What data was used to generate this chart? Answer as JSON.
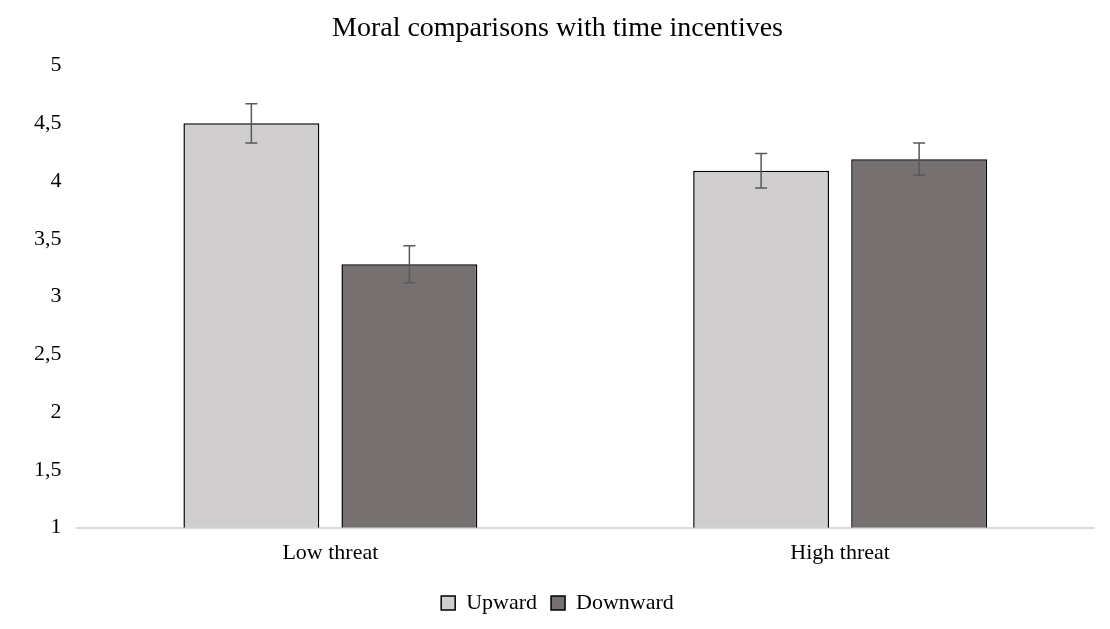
{
  "chart_data": {
    "type": "bar",
    "title": "Moral comparisons with time incentives",
    "categories": [
      "Low threat",
      "High threat"
    ],
    "series": [
      {
        "name": "Upward",
        "color": "#d0cecf",
        "values": [
          4.5,
          4.09
        ],
        "errors": [
          0.17,
          0.15
        ]
      },
      {
        "name": "Downward",
        "color": "#767170",
        "values": [
          3.28,
          4.19
        ],
        "errors": [
          0.16,
          0.14
        ]
      }
    ],
    "ylim": [
      1,
      5
    ],
    "yticks": [
      {
        "value": 1,
        "label": "1"
      },
      {
        "value": 1.5,
        "label": "1,5"
      },
      {
        "value": 2,
        "label": "2"
      },
      {
        "value": 2.5,
        "label": "2,5"
      },
      {
        "value": 3,
        "label": "3"
      },
      {
        "value": 3.5,
        "label": "3,5"
      },
      {
        "value": 4,
        "label": "4"
      },
      {
        "value": 4.5,
        "label": "4,5"
      },
      {
        "value": 5,
        "label": "5"
      }
    ],
    "grid": false,
    "legend": "bottom"
  }
}
